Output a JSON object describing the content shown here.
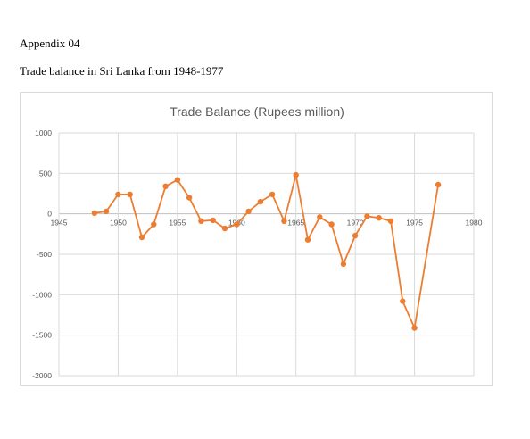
{
  "document": {
    "appendix_label": "Appendix 04",
    "caption": "Trade balance in Sri Lanka from 1948-1977"
  },
  "chart_data": {
    "type": "scatter",
    "title": "Trade Balance (Rupees million)",
    "xlabel": "",
    "ylabel": "",
    "xlim": [
      1945,
      1980
    ],
    "ylim": [
      -2000,
      1000
    ],
    "x_ticks": [
      1945,
      1950,
      1955,
      1960,
      1965,
      1970,
      1975,
      1980
    ],
    "y_ticks": [
      1000,
      500,
      0,
      -500,
      -1000,
      -1500,
      -2000
    ],
    "grid": true,
    "legend": "none",
    "markers": true,
    "line_connected": true,
    "color": "#ed7d31",
    "series": [
      {
        "x": [
          1948,
          1949,
          1950,
          1951,
          1952,
          1953,
          1954,
          1955,
          1956,
          1957,
          1958,
          1959,
          1960,
          1961,
          1962,
          1963,
          1964,
          1965,
          1966,
          1967,
          1968,
          1969,
          1970,
          1971,
          1972,
          1973,
          1974,
          1975,
          1977
        ],
        "y": [
          10,
          30,
          240,
          240,
          -290,
          -130,
          340,
          420,
          200,
          -90,
          -80,
          -180,
          -130,
          30,
          150,
          240,
          -90,
          480,
          -320,
          -40,
          -130,
          -620,
          -270,
          -30,
          -50,
          -90,
          -1080,
          -1410,
          360
        ]
      }
    ]
  }
}
